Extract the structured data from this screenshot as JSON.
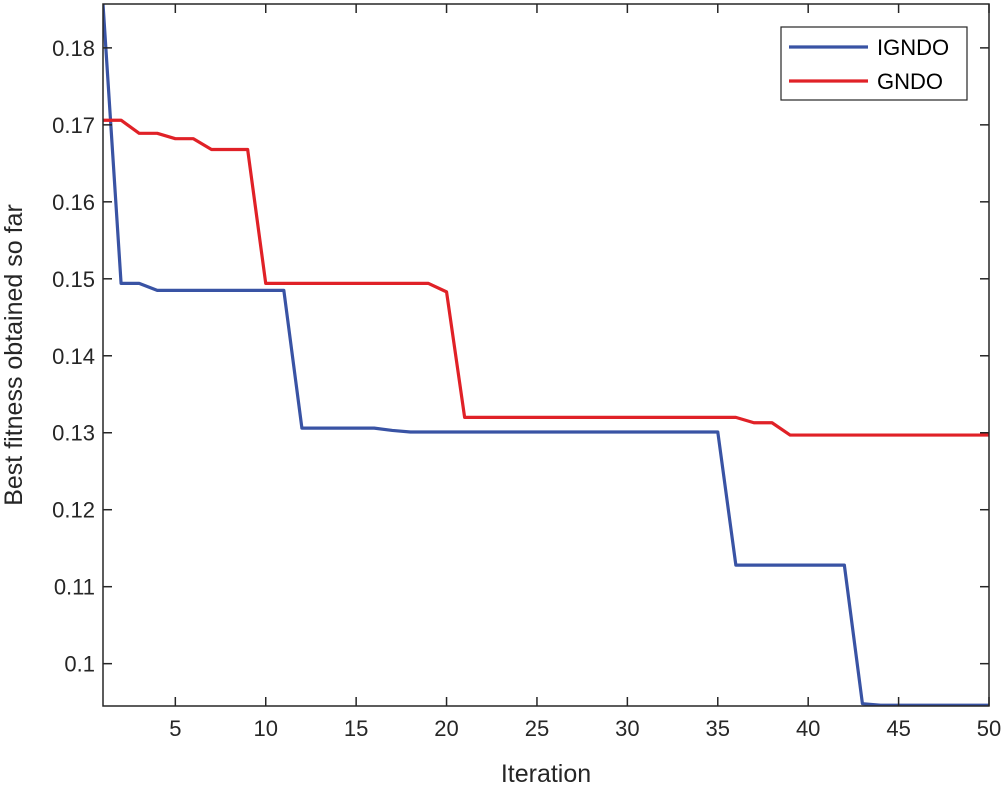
{
  "chart_data": {
    "type": "line",
    "title": "",
    "xlabel": "Iteration",
    "ylabel": "Best fitness obtained so far",
    "xlim": [
      1,
      50
    ],
    "ylim": [
      0.0945,
      0.1857
    ],
    "xticks": [
      5,
      10,
      15,
      20,
      25,
      30,
      35,
      40,
      45,
      50
    ],
    "yticks": [
      0.1,
      0.11,
      0.12,
      0.13,
      0.14,
      0.15,
      0.16,
      0.17,
      0.18
    ],
    "ytick_labels": [
      "0.1",
      "0.11",
      "0.12",
      "0.13",
      "0.14",
      "0.15",
      "0.16",
      "0.17",
      "0.18"
    ],
    "grid": false,
    "legend_position": "top-right",
    "series": [
      {
        "name": "IGNDO",
        "color": "#3953a4",
        "x": [
          1,
          2,
          3,
          4,
          5,
          6,
          7,
          8,
          9,
          10,
          11,
          12,
          13,
          14,
          15,
          16,
          17,
          18,
          19,
          20,
          21,
          22,
          23,
          24,
          25,
          26,
          27,
          28,
          29,
          30,
          31,
          32,
          33,
          34,
          35,
          36,
          37,
          38,
          39,
          40,
          41,
          42,
          43,
          44,
          45,
          46,
          47,
          48,
          49,
          50
        ],
        "y": [
          0.1857,
          0.1494,
          0.1494,
          0.1485,
          0.1485,
          0.1485,
          0.1485,
          0.1485,
          0.1485,
          0.1485,
          0.1485,
          0.1306,
          0.1306,
          0.1306,
          0.1306,
          0.1306,
          0.1303,
          0.1301,
          0.1301,
          0.1301,
          0.1301,
          0.1301,
          0.1301,
          0.1301,
          0.1301,
          0.1301,
          0.1301,
          0.1301,
          0.1301,
          0.1301,
          0.1301,
          0.1301,
          0.1301,
          0.1301,
          0.1301,
          0.1128,
          0.1128,
          0.1128,
          0.1128,
          0.1128,
          0.1128,
          0.1128,
          0.0948,
          0.0946,
          0.0946,
          0.0946,
          0.0946,
          0.0946,
          0.0946,
          0.0946
        ]
      },
      {
        "name": "GNDO",
        "color": "#e02127",
        "x": [
          1,
          2,
          3,
          4,
          5,
          6,
          7,
          8,
          9,
          10,
          11,
          12,
          13,
          14,
          15,
          16,
          17,
          18,
          19,
          20,
          21,
          22,
          23,
          24,
          25,
          26,
          27,
          28,
          29,
          30,
          31,
          32,
          33,
          34,
          35,
          36,
          37,
          38,
          39,
          40,
          41,
          42,
          43,
          44,
          45,
          46,
          47,
          48,
          49,
          50
        ],
        "y": [
          0.1706,
          0.1706,
          0.1689,
          0.1689,
          0.1682,
          0.1682,
          0.1668,
          0.1668,
          0.1668,
          0.1494,
          0.1494,
          0.1494,
          0.1494,
          0.1494,
          0.1494,
          0.1494,
          0.1494,
          0.1494,
          0.1494,
          0.1483,
          0.132,
          0.132,
          0.132,
          0.132,
          0.132,
          0.132,
          0.132,
          0.132,
          0.132,
          0.132,
          0.132,
          0.132,
          0.132,
          0.132,
          0.132,
          0.132,
          0.1313,
          0.1313,
          0.1297,
          0.1297,
          0.1297,
          0.1297,
          0.1297,
          0.1297,
          0.1297,
          0.1297,
          0.1297,
          0.1297,
          0.1297,
          0.1297
        ]
      }
    ]
  }
}
